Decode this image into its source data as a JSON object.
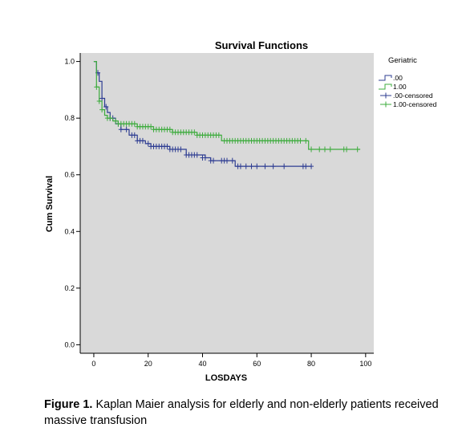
{
  "chart_data": {
    "type": "line",
    "title": "Survival Functions",
    "xlabel": "LOSDAYS",
    "ylabel": "Cum Survival",
    "xlim": [
      -5,
      103
    ],
    "ylim": [
      -0.03,
      1.03
    ],
    "x_ticks": [
      0,
      20,
      40,
      60,
      80,
      100
    ],
    "y_ticks": [
      0.0,
      0.2,
      0.4,
      0.6,
      0.8,
      1.0
    ],
    "x_tick_labels": [
      "0",
      "20",
      "40",
      "60",
      "80",
      "100"
    ],
    "y_tick_labels": [
      "0.0",
      "0.2",
      "0.4",
      "0.6",
      "0.8",
      "1.0"
    ],
    "plot_background": "#d9d9d9",
    "grid": false,
    "legend_title": "Geriatric",
    "legend_position": "top-right, outside plot",
    "legend_entries": [
      ".00",
      "1.00",
      ".00-censored",
      "1.00-censored"
    ],
    "series": [
      {
        "name": ".00",
        "color": "#2e3d92",
        "step_x": [
          0,
          1,
          2,
          3,
          4,
          5,
          6,
          8,
          10,
          13,
          16,
          19,
          21,
          25,
          28,
          34,
          41,
          43,
          46,
          52,
          80
        ],
        "step_y": [
          1.0,
          0.96,
          0.93,
          0.87,
          0.84,
          0.82,
          0.8,
          0.78,
          0.76,
          0.74,
          0.72,
          0.71,
          0.7,
          0.7,
          0.69,
          0.67,
          0.66,
          0.65,
          0.65,
          0.63,
          0.63
        ],
        "censored_x": [
          1.5,
          3,
          4.5,
          6,
          7,
          9,
          10,
          12,
          14,
          15,
          16,
          17,
          18,
          20,
          21,
          22,
          23,
          24,
          25,
          26,
          27,
          28,
          29,
          30,
          31,
          32,
          34,
          35,
          36,
          37,
          38,
          40,
          41,
          43,
          44,
          47,
          48,
          49,
          51,
          53,
          54,
          56,
          58,
          60,
          63,
          66,
          70,
          77,
          78,
          80
        ],
        "censored_y": [
          0.96,
          0.87,
          0.84,
          0.8,
          0.8,
          0.78,
          0.76,
          0.76,
          0.74,
          0.74,
          0.72,
          0.72,
          0.72,
          0.71,
          0.7,
          0.7,
          0.7,
          0.7,
          0.7,
          0.7,
          0.7,
          0.69,
          0.69,
          0.69,
          0.69,
          0.69,
          0.67,
          0.67,
          0.67,
          0.67,
          0.67,
          0.66,
          0.66,
          0.65,
          0.65,
          0.65,
          0.65,
          0.65,
          0.65,
          0.63,
          0.63,
          0.63,
          0.63,
          0.63,
          0.63,
          0.63,
          0.63,
          0.63,
          0.63,
          0.63
        ]
      },
      {
        "name": "1.00",
        "color": "#3eac3e",
        "step_x": [
          0,
          1,
          2,
          3,
          4,
          5,
          7,
          9,
          16,
          22,
          29,
          38,
          47,
          79,
          98
        ],
        "step_y": [
          1.0,
          0.91,
          0.86,
          0.83,
          0.81,
          0.8,
          0.79,
          0.78,
          0.77,
          0.76,
          0.75,
          0.74,
          0.72,
          0.69,
          0.69
        ],
        "censored_x": [
          1,
          2,
          3,
          5,
          6,
          8,
          9,
          10,
          11,
          12,
          13,
          14,
          15,
          16,
          17,
          18,
          19,
          20,
          21,
          22,
          23,
          24,
          25,
          26,
          27,
          28,
          29,
          30,
          31,
          32,
          33,
          34,
          35,
          36,
          37,
          38,
          39,
          40,
          41,
          42,
          43,
          44,
          45,
          46,
          48,
          49,
          50,
          51,
          52,
          53,
          54,
          55,
          56,
          57,
          58,
          59,
          60,
          61,
          62,
          63,
          64,
          65,
          66,
          67,
          68,
          69,
          70,
          71,
          72,
          73,
          74,
          75,
          76,
          78,
          80,
          83,
          85,
          87,
          92,
          93,
          97
        ],
        "censored_y": [
          0.91,
          0.86,
          0.83,
          0.8,
          0.8,
          0.79,
          0.78,
          0.78,
          0.78,
          0.78,
          0.78,
          0.78,
          0.78,
          0.77,
          0.77,
          0.77,
          0.77,
          0.77,
          0.77,
          0.76,
          0.76,
          0.76,
          0.76,
          0.76,
          0.76,
          0.76,
          0.75,
          0.75,
          0.75,
          0.75,
          0.75,
          0.75,
          0.75,
          0.75,
          0.75,
          0.74,
          0.74,
          0.74,
          0.74,
          0.74,
          0.74,
          0.74,
          0.74,
          0.74,
          0.72,
          0.72,
          0.72,
          0.72,
          0.72,
          0.72,
          0.72,
          0.72,
          0.72,
          0.72,
          0.72,
          0.72,
          0.72,
          0.72,
          0.72,
          0.72,
          0.72,
          0.72,
          0.72,
          0.72,
          0.72,
          0.72,
          0.72,
          0.72,
          0.72,
          0.72,
          0.72,
          0.72,
          0.72,
          0.72,
          0.69,
          0.69,
          0.69,
          0.69,
          0.69,
          0.69,
          0.69
        ]
      }
    ]
  },
  "caption": {
    "label": "Figure 1.",
    "text": " Kaplan Maier analysis for elderly and non-elderly patients received massive transfusion"
  }
}
